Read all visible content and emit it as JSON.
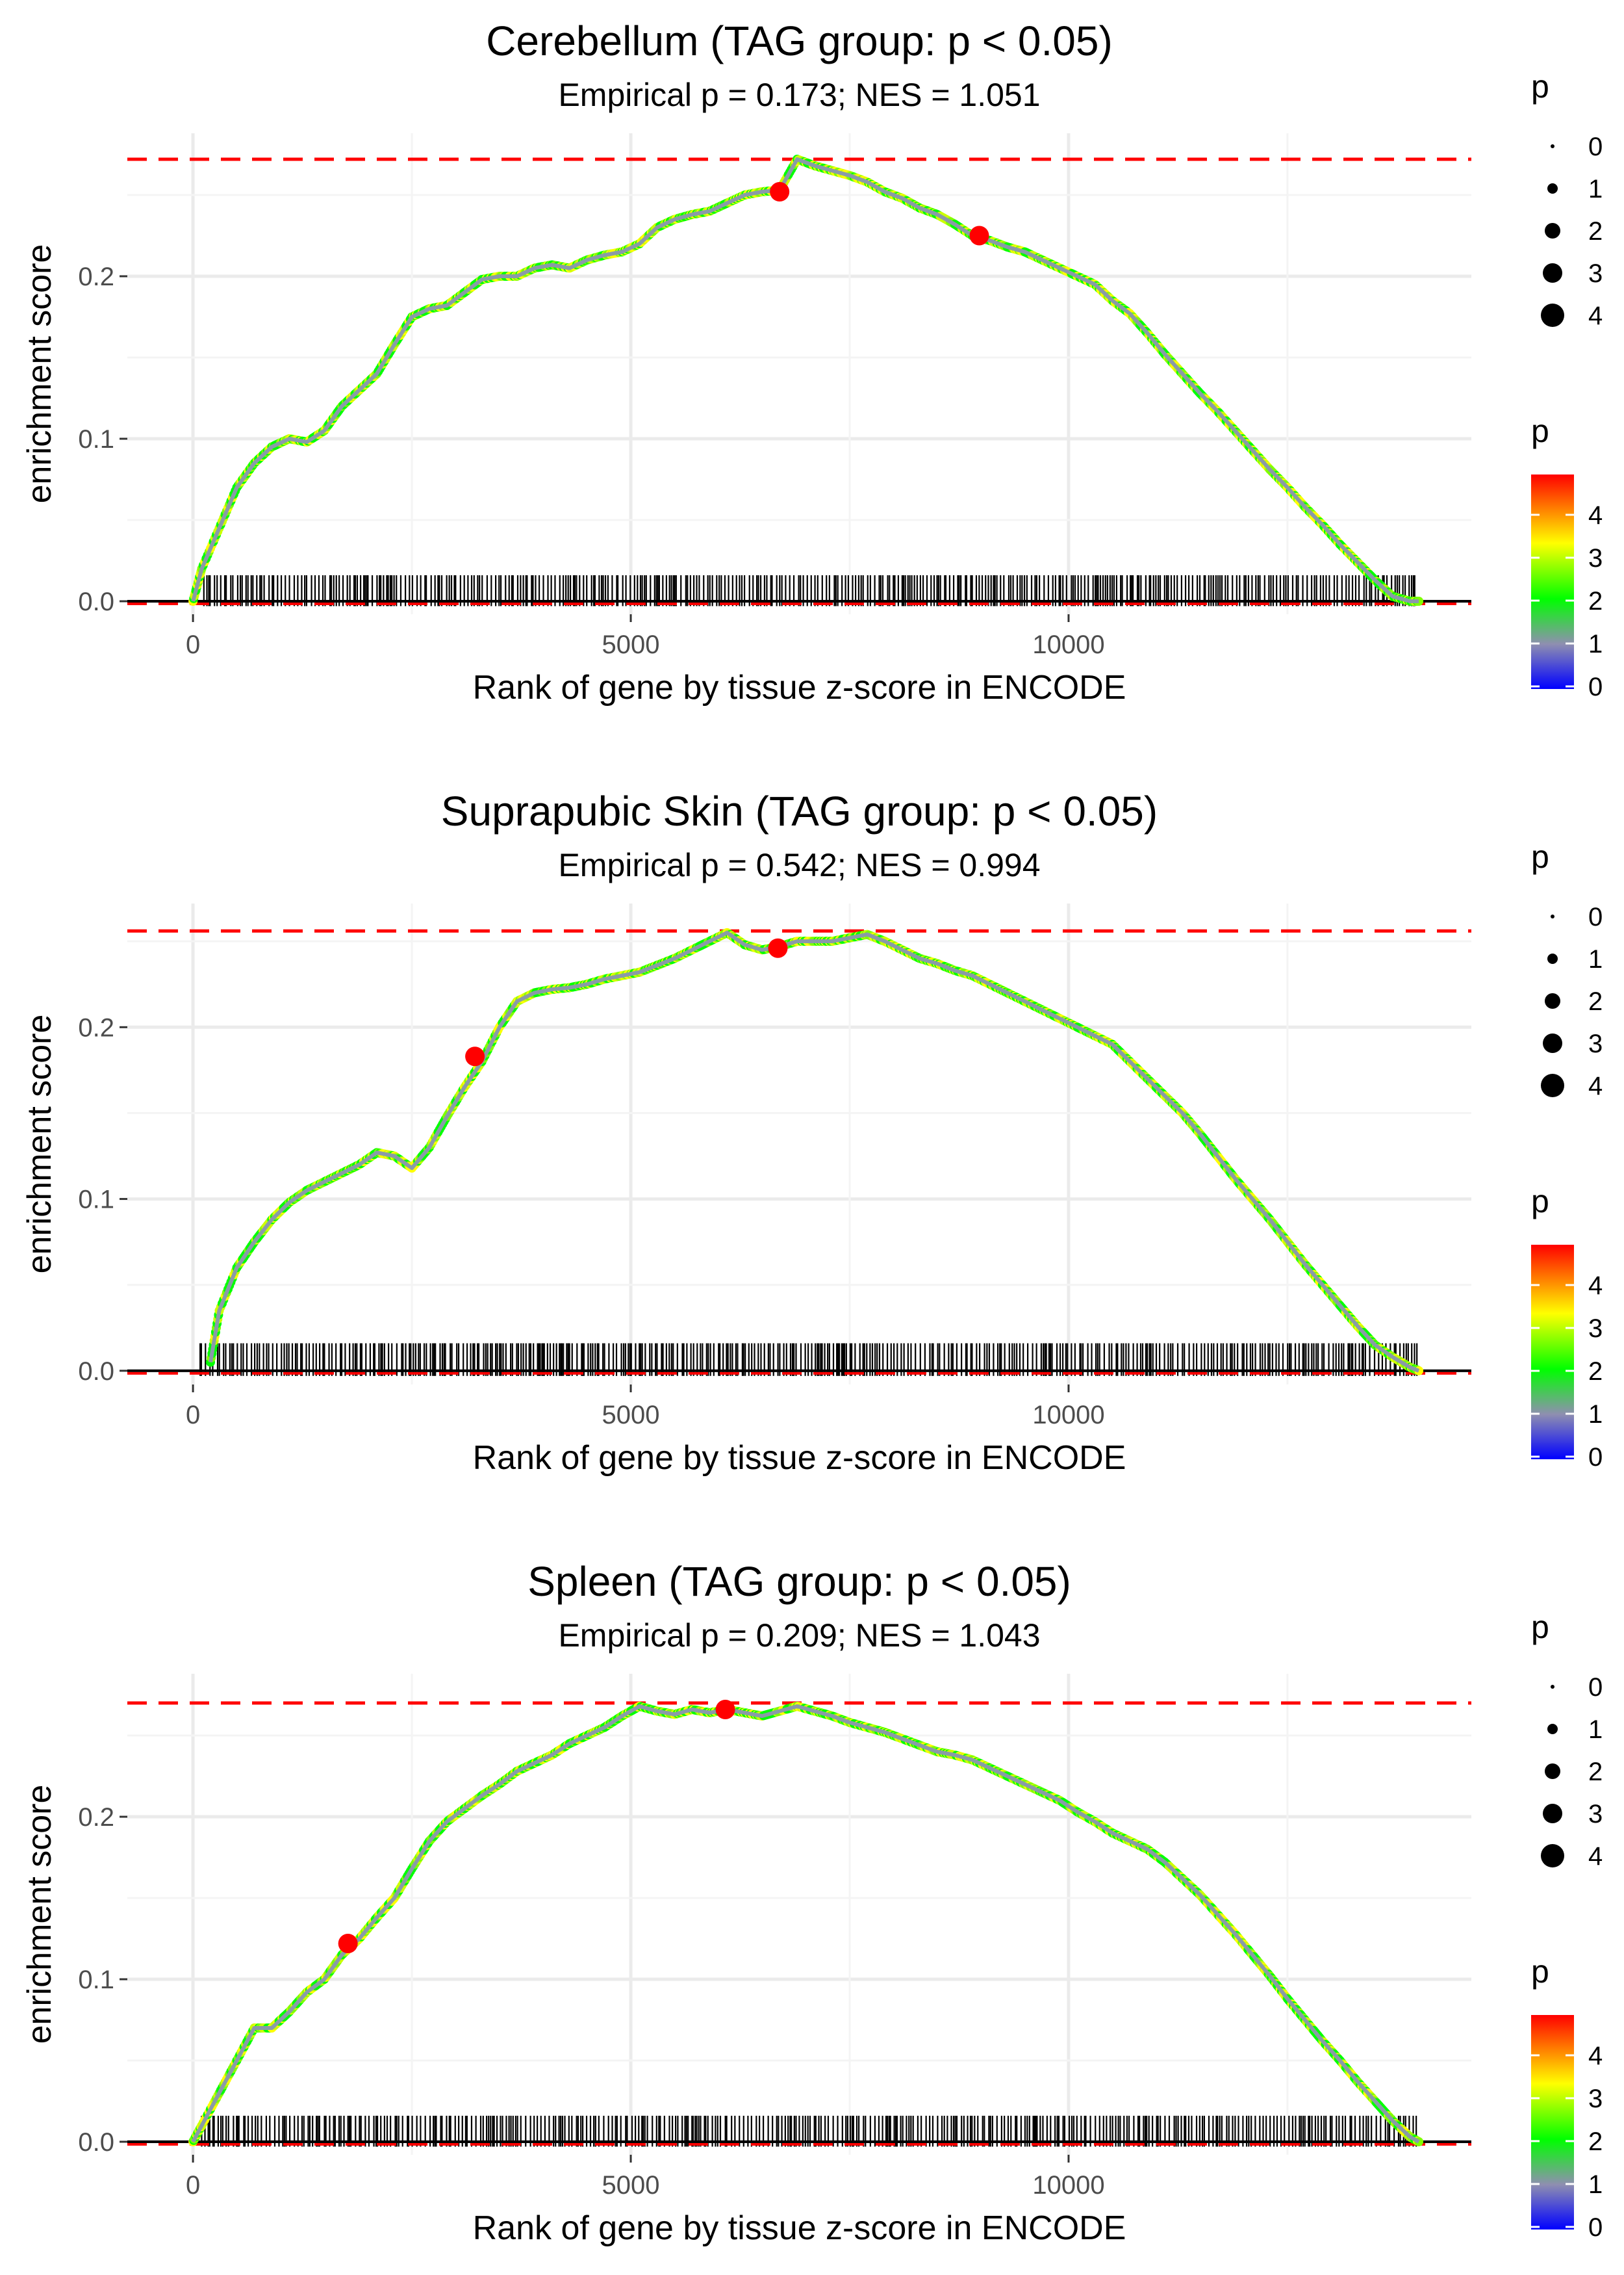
{
  "palette": {
    "background": "#ffffff",
    "grid": "#ebebeb",
    "curve": "#8a9aa8",
    "ref_line": "#ff0000",
    "axis_line": "#000000",
    "tick_text": "#4d4d4d",
    "title_text": "#000000",
    "gradient": [
      "#0000ff",
      "#8f8fb0",
      "#00ff00",
      "#ffff00",
      "#ff0000"
    ]
  },
  "legend": {
    "size_title": "p",
    "size_labels": [
      "0",
      "1",
      "2",
      "3",
      "4"
    ],
    "color_title": "p",
    "color_labels": [
      "0",
      "1",
      "2",
      "3",
      "4"
    ]
  },
  "chart_data": [
    {
      "type": "line",
      "title": "Cerebellum (TAG group: p < 0.05)",
      "subtitle": "Empirical p = 0.173; NES = 1.051",
      "xlabel": "Rank of gene by tissue z-score in ENCODE",
      "ylabel": "enrichment score",
      "xlim": [
        -750,
        14600
      ],
      "ylim": [
        -0.008,
        0.288
      ],
      "xticks": [
        0,
        5000,
        10000
      ],
      "xtick_labels": [
        "0",
        "5000",
        "10000"
      ],
      "yticks": [
        0.0,
        0.1,
        0.2
      ],
      "ytick_labels": [
        "0.0",
        "0.1",
        "0.2"
      ],
      "max_es": 0.272,
      "n_genes": 14000,
      "curve": {
        "x": [
          0,
          100,
          300,
          500,
          700,
          900,
          1100,
          1300,
          1500,
          1700,
          1900,
          2100,
          2300,
          2500,
          2700,
          2900,
          3100,
          3300,
          3500,
          3700,
          3900,
          4100,
          4300,
          4500,
          4700,
          4900,
          5100,
          5300,
          5500,
          5700,
          5900,
          6100,
          6300,
          6500,
          6700,
          6900,
          7100,
          7300,
          7500,
          7700,
          7900,
          8100,
          8300,
          8500,
          8700,
          8900,
          9100,
          9300,
          9500,
          9700,
          9900,
          10100,
          10300,
          10500,
          10700,
          10900,
          11100,
          11300,
          11500,
          11700,
          11900,
          12100,
          12300,
          12500,
          12700,
          12900,
          13100,
          13300,
          13500,
          13700,
          13900,
          14000
        ],
        "y": [
          0.0,
          0.02,
          0.045,
          0.07,
          0.085,
          0.095,
          0.1,
          0.098,
          0.105,
          0.12,
          0.13,
          0.14,
          0.158,
          0.175,
          0.18,
          0.182,
          0.19,
          0.198,
          0.2,
          0.2,
          0.205,
          0.207,
          0.205,
          0.21,
          0.213,
          0.215,
          0.22,
          0.23,
          0.235,
          0.238,
          0.24,
          0.245,
          0.25,
          0.252,
          0.253,
          0.272,
          0.268,
          0.265,
          0.262,
          0.258,
          0.252,
          0.248,
          0.242,
          0.238,
          0.232,
          0.225,
          0.222,
          0.218,
          0.215,
          0.21,
          0.205,
          0.2,
          0.195,
          0.185,
          0.177,
          0.165,
          0.152,
          0.14,
          0.128,
          0.117,
          0.105,
          0.093,
          0.081,
          0.07,
          0.058,
          0.047,
          0.035,
          0.024,
          0.013,
          0.003,
          0.0,
          0.0
        ]
      },
      "highlights": [
        {
          "x": 6700,
          "y": 0.252,
          "p": 4
        },
        {
          "x": 8980,
          "y": 0.225,
          "p": 4
        }
      ]
    },
    {
      "type": "line",
      "title": "Suprapubic Skin (TAG group: p < 0.05)",
      "subtitle": "Empirical p = 0.542; NES = 0.994",
      "xlabel": "Rank of gene by tissue z-score in ENCODE",
      "ylabel": "enrichment score",
      "xlim": [
        -750,
        14600
      ],
      "ylim": [
        -0.008,
        0.272
      ],
      "xticks": [
        0,
        5000,
        10000
      ],
      "xtick_labels": [
        "0",
        "5000",
        "10000"
      ],
      "yticks": [
        0.0,
        0.1,
        0.2
      ],
      "ytick_labels": [
        "0.0",
        "0.1",
        "0.2"
      ],
      "max_es": 0.256,
      "n_genes": 14000,
      "curve": {
        "x": [
          200,
          300,
          500,
          700,
          900,
          1100,
          1300,
          1500,
          1700,
          1900,
          2100,
          2300,
          2500,
          2700,
          2900,
          3100,
          3300,
          3500,
          3700,
          3900,
          4100,
          4300,
          4500,
          4700,
          4900,
          5100,
          5300,
          5500,
          5700,
          5900,
          6100,
          6300,
          6500,
          6700,
          6900,
          7100,
          7300,
          7500,
          7700,
          7900,
          8100,
          8300,
          8500,
          8700,
          8900,
          9100,
          9300,
          9500,
          9700,
          9900,
          10100,
          10300,
          10500,
          10700,
          10900,
          11100,
          11300,
          11500,
          11700,
          11900,
          12100,
          12300,
          12500,
          12700,
          12900,
          13100,
          13300,
          13500,
          13700,
          13900,
          14000
        ],
        "y": [
          0.005,
          0.035,
          0.06,
          0.075,
          0.088,
          0.098,
          0.105,
          0.11,
          0.115,
          0.12,
          0.127,
          0.125,
          0.118,
          0.13,
          0.148,
          0.165,
          0.18,
          0.2,
          0.215,
          0.22,
          0.222,
          0.223,
          0.225,
          0.228,
          0.23,
          0.232,
          0.236,
          0.24,
          0.245,
          0.25,
          0.255,
          0.248,
          0.245,
          0.247,
          0.25,
          0.25,
          0.25,
          0.252,
          0.254,
          0.25,
          0.245,
          0.24,
          0.237,
          0.233,
          0.23,
          0.225,
          0.22,
          0.215,
          0.21,
          0.205,
          0.2,
          0.195,
          0.19,
          0.18,
          0.17,
          0.16,
          0.15,
          0.138,
          0.125,
          0.112,
          0.1,
          0.088,
          0.075,
          0.062,
          0.05,
          0.038,
          0.026,
          0.015,
          0.008,
          0.002,
          0.0
        ]
      },
      "highlights": [
        {
          "x": 3220,
          "y": 0.183,
          "p": 4
        },
        {
          "x": 6680,
          "y": 0.246,
          "p": 4
        }
      ]
    },
    {
      "type": "line",
      "title": "Spleen (TAG group: p < 0.05)",
      "subtitle": "Empirical p = 0.209; NES = 1.043",
      "xlabel": "Rank of gene by tissue z-score in ENCODE",
      "ylabel": "enrichment score",
      "xlim": [
        -750,
        14600
      ],
      "ylim": [
        -0.008,
        0.288
      ],
      "xticks": [
        0,
        5000,
        10000
      ],
      "xtick_labels": [
        "0",
        "5000",
        "10000"
      ],
      "yticks": [
        0.0,
        0.1,
        0.2
      ],
      "ytick_labels": [
        "0.0",
        "0.1",
        "0.2"
      ],
      "max_es": 0.27,
      "n_genes": 14000,
      "curve": {
        "x": [
          0,
          100,
          300,
          500,
          700,
          900,
          1100,
          1300,
          1500,
          1700,
          1900,
          2100,
          2300,
          2500,
          2700,
          2900,
          3100,
          3300,
          3500,
          3700,
          3900,
          4100,
          4300,
          4500,
          4700,
          4900,
          5100,
          5300,
          5500,
          5700,
          5900,
          6100,
          6300,
          6500,
          6700,
          6900,
          7100,
          7300,
          7500,
          7700,
          7900,
          8100,
          8300,
          8500,
          8700,
          8900,
          9100,
          9300,
          9500,
          9700,
          9900,
          10100,
          10300,
          10500,
          10700,
          10900,
          11100,
          11300,
          11500,
          11700,
          11900,
          12100,
          12300,
          12500,
          12700,
          12900,
          13100,
          13300,
          13500,
          13700,
          13900,
          14000
        ],
        "y": [
          0.0,
          0.01,
          0.03,
          0.05,
          0.07,
          0.07,
          0.08,
          0.092,
          0.1,
          0.115,
          0.125,
          0.138,
          0.15,
          0.168,
          0.185,
          0.197,
          0.205,
          0.213,
          0.22,
          0.228,
          0.233,
          0.238,
          0.245,
          0.25,
          0.255,
          0.262,
          0.268,
          0.265,
          0.263,
          0.266,
          0.264,
          0.266,
          0.264,
          0.262,
          0.265,
          0.268,
          0.265,
          0.262,
          0.258,
          0.255,
          0.252,
          0.248,
          0.244,
          0.24,
          0.238,
          0.235,
          0.23,
          0.225,
          0.22,
          0.215,
          0.21,
          0.203,
          0.197,
          0.19,
          0.185,
          0.18,
          0.172,
          0.162,
          0.152,
          0.14,
          0.128,
          0.115,
          0.102,
          0.088,
          0.075,
          0.062,
          0.05,
          0.037,
          0.025,
          0.013,
          0.003,
          0.0
        ]
      },
      "highlights": [
        {
          "x": 1770,
          "y": 0.122,
          "p": 4
        },
        {
          "x": 6080,
          "y": 0.266,
          "p": 4
        }
      ]
    }
  ]
}
